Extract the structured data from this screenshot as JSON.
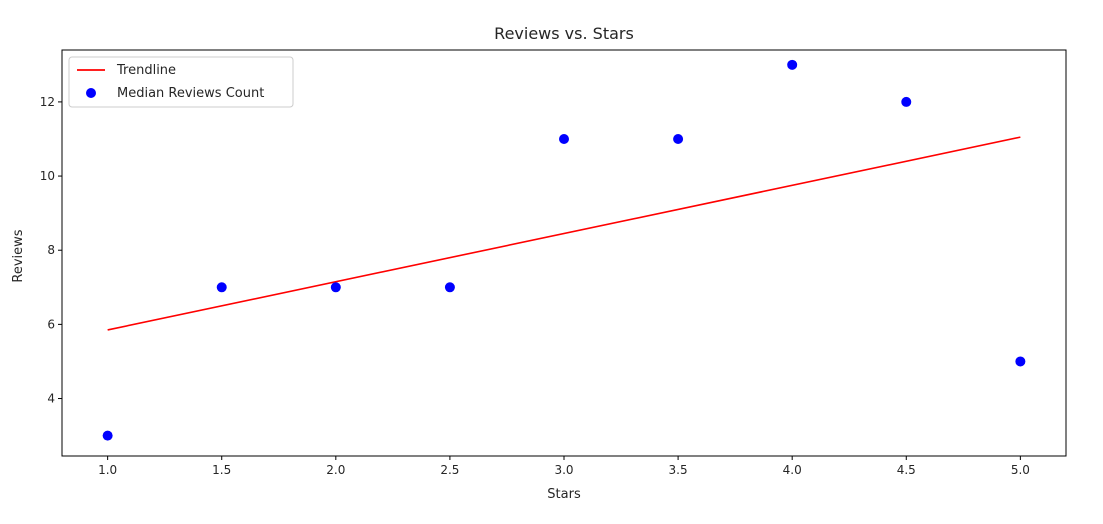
{
  "chart_data": {
    "type": "scatter",
    "title": "Reviews vs. Stars",
    "xlabel": "Stars",
    "ylabel": "Reviews",
    "xlim": [
      0.8,
      5.2
    ],
    "ylim": [
      2.45,
      13.4
    ],
    "xticks": [
      1.0,
      1.5,
      2.0,
      2.5,
      3.0,
      3.5,
      4.0,
      4.5,
      5.0
    ],
    "xtick_labels": [
      "1.0",
      "1.5",
      "2.0",
      "2.5",
      "3.0",
      "3.5",
      "4.0",
      "4.5",
      "5.0"
    ],
    "yticks": [
      4,
      6,
      8,
      10,
      12
    ],
    "ytick_labels": [
      "4",
      "6",
      "8",
      "10",
      "12"
    ],
    "grid": false,
    "legend": {
      "position": "top-left",
      "entries": [
        "Trendline",
        "Median Reviews Count"
      ]
    },
    "series": [
      {
        "name": "Median Reviews Count",
        "kind": "scatter",
        "color": "#0000ff",
        "x": [
          1.0,
          1.5,
          2.0,
          2.5,
          3.0,
          3.5,
          4.0,
          4.5,
          5.0
        ],
        "y": [
          3,
          7,
          7,
          7,
          11,
          11,
          13,
          12,
          5
        ]
      },
      {
        "name": "Trendline",
        "kind": "line",
        "color": "#ff0000",
        "x": [
          1.0,
          5.0
        ],
        "y": [
          5.85,
          11.05
        ]
      }
    ]
  }
}
